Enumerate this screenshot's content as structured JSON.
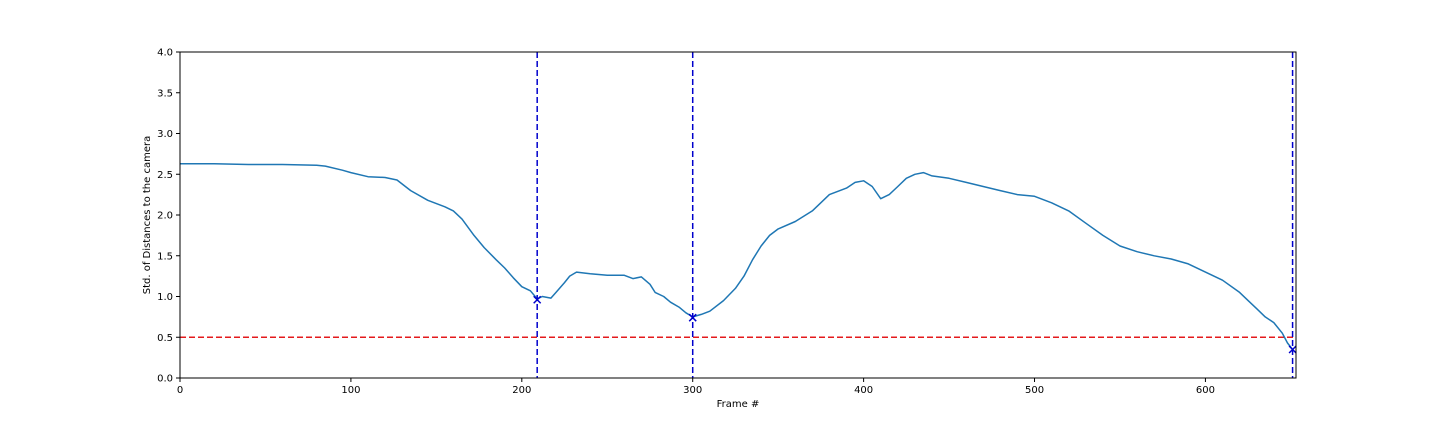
{
  "chart_data": {
    "type": "line",
    "title": "",
    "xlabel": "Frame #",
    "ylabel": "Std. of Distances to the camera",
    "xlim": [
      0,
      653
    ],
    "ylim": [
      0,
      4.0
    ],
    "xticks": [
      0,
      100,
      200,
      300,
      400,
      500,
      600
    ],
    "yticks": [
      0.0,
      0.5,
      1.0,
      1.5,
      2.0,
      2.5,
      3.0,
      3.5,
      4.0
    ],
    "xtick_labels": [
      "0",
      "100",
      "200",
      "300",
      "400",
      "500",
      "600"
    ],
    "ytick_labels": [
      "0.0",
      "0.5",
      "1.0",
      "1.5",
      "2.0",
      "2.5",
      "3.0",
      "3.5",
      "4.0"
    ],
    "grid": false,
    "series": [
      {
        "color": "#1f77b4",
        "x": [
          0,
          20,
          40,
          60,
          80,
          85,
          95,
          100,
          110,
          120,
          127,
          135,
          145,
          155,
          160,
          165,
          172,
          178,
          185,
          190,
          195,
          200,
          205,
          209,
          212,
          217,
          220,
          225,
          228,
          232,
          240,
          250,
          260,
          265,
          270,
          275,
          278,
          283,
          287,
          292,
          296,
          300,
          305,
          310,
          318,
          325,
          330,
          335,
          340,
          345,
          350,
          360,
          370,
          380,
          390,
          395,
          400,
          405,
          410,
          415,
          420,
          425,
          430,
          435,
          440,
          450,
          460,
          470,
          480,
          490,
          500,
          510,
          520,
          530,
          540,
          550,
          560,
          570,
          580,
          590,
          600,
          610,
          620,
          625,
          630,
          635,
          640,
          645,
          648,
          651
        ],
        "y": [
          2.63,
          2.63,
          2.62,
          2.62,
          2.61,
          2.6,
          2.55,
          2.52,
          2.47,
          2.46,
          2.43,
          2.3,
          2.18,
          2.1,
          2.05,
          1.95,
          1.75,
          1.6,
          1.45,
          1.35,
          1.23,
          1.12,
          1.07,
          0.97,
          1.0,
          0.98,
          1.05,
          1.17,
          1.25,
          1.3,
          1.28,
          1.26,
          1.26,
          1.22,
          1.24,
          1.15,
          1.05,
          1.0,
          0.93,
          0.87,
          0.8,
          0.75,
          0.78,
          0.82,
          0.95,
          1.1,
          1.25,
          1.45,
          1.62,
          1.75,
          1.83,
          1.92,
          2.05,
          2.25,
          2.33,
          2.4,
          2.42,
          2.35,
          2.2,
          2.25,
          2.35,
          2.45,
          2.5,
          2.52,
          2.48,
          2.45,
          2.4,
          2.35,
          2.3,
          2.25,
          2.23,
          2.15,
          2.05,
          1.9,
          1.75,
          1.62,
          1.55,
          1.5,
          1.46,
          1.4,
          1.3,
          1.2,
          1.05,
          0.95,
          0.85,
          0.75,
          0.68,
          0.55,
          0.43,
          0.35
        ]
      }
    ],
    "markers": [
      {
        "x": 209,
        "y": 0.96,
        "symbol": "x",
        "color": "#0000cc"
      },
      {
        "x": 300,
        "y": 0.74,
        "symbol": "x",
        "color": "#0000cc"
      },
      {
        "x": 651,
        "y": 0.35,
        "symbol": "x",
        "color": "#0000cc"
      }
    ],
    "vlines": [
      {
        "x": 209,
        "style": "dashed",
        "color": "#0000cc"
      },
      {
        "x": 300,
        "style": "dashed",
        "color": "#0000cc"
      },
      {
        "x": 651,
        "style": "dashed",
        "color": "#0000cc"
      }
    ],
    "hlines": [
      {
        "y": 0.5,
        "style": "dashed",
        "color": "#e41a1c"
      }
    ]
  }
}
